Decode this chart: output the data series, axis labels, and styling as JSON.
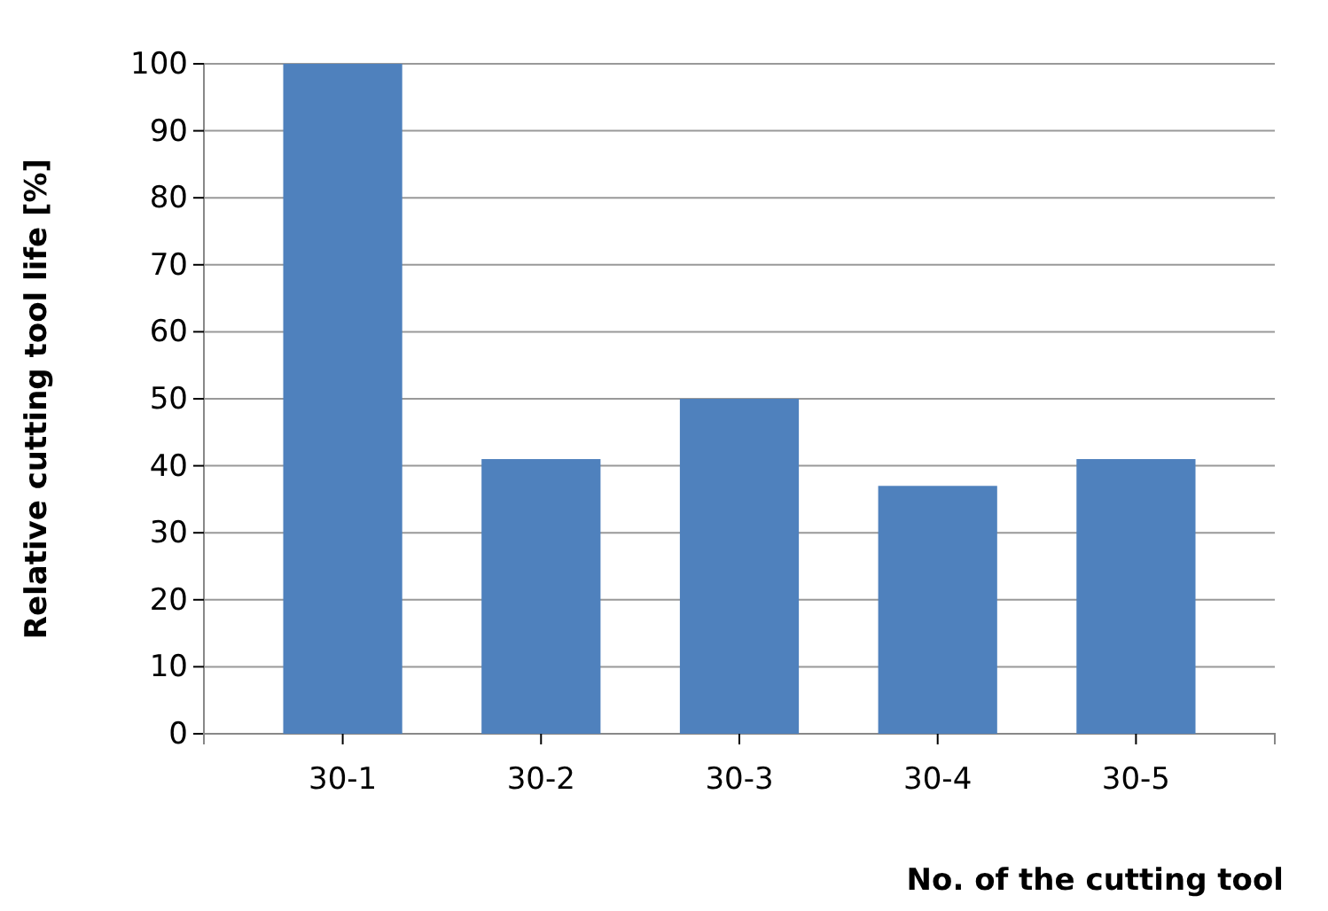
{
  "chart_data": {
    "type": "bar",
    "xlabel": "No. of the cutting tool",
    "ylabel": "Relative cutting tool life [%]",
    "categories": [
      "30-1",
      "30-2",
      "30-3",
      "30-4",
      "30-5"
    ],
    "values": [
      100,
      41,
      50,
      37,
      41
    ],
    "color": "#4f81bd",
    "ylim": [
      0,
      100
    ],
    "yticks": [
      0,
      10,
      20,
      30,
      40,
      50,
      60,
      70,
      80,
      90,
      100
    ],
    "grid": "y"
  }
}
